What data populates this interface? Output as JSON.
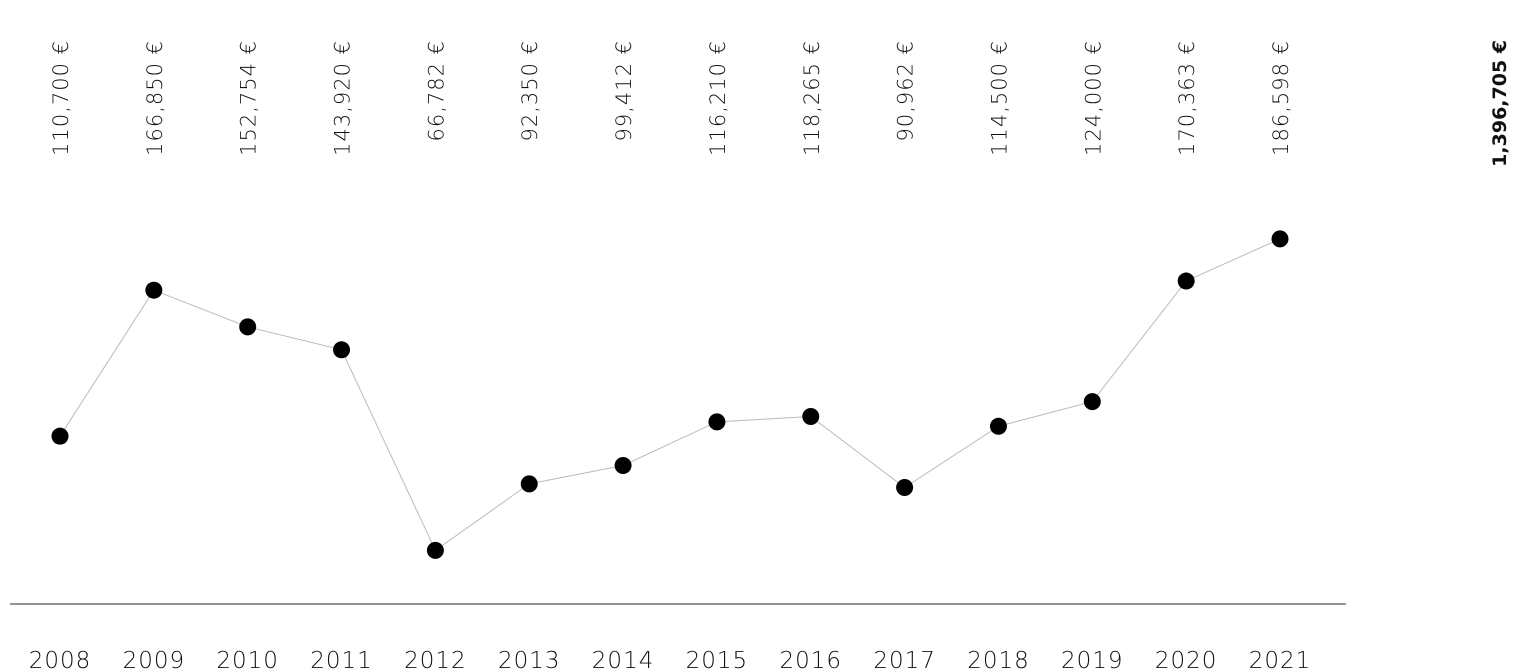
{
  "chart_data": {
    "type": "line",
    "categories": [
      "2008",
      "2009",
      "2010",
      "2011",
      "2012",
      "2013",
      "2014",
      "2015",
      "2016",
      "2017",
      "2018",
      "2019",
      "2020",
      "2021"
    ],
    "values": [
      110700,
      166850,
      152754,
      143920,
      66782,
      92350,
      99412,
      116210,
      118265,
      90962,
      114500,
      124000,
      170363,
      186598
    ],
    "value_labels": [
      "110,700 €",
      "166,850 €",
      "152,754 €",
      "143,920 €",
      "66,782 €",
      "92,350 €",
      "99,412 €",
      "116,210 €",
      "118,265 €",
      "90,962 €",
      "114,500 €",
      "124,000 €",
      "170,363 €",
      "186,598 €"
    ],
    "color": "#000000",
    "line_color": "#bbbbbb",
    "ylim": [
      40000,
      200000
    ],
    "annotation": "1,396,705 €"
  }
}
